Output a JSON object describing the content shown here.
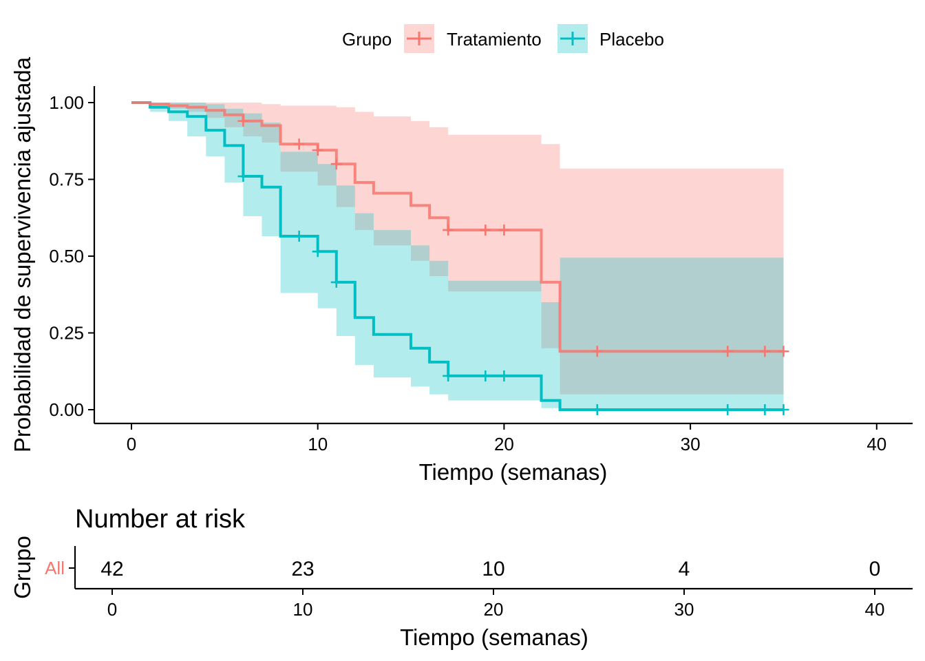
{
  "chart_data": [
    {
      "type": "line",
      "subtype": "kaplan-meier",
      "xlabel": "Tiempo (semanas)",
      "ylabel": "Probabilidad de supervivencia ajustada",
      "xlim": [
        0,
        40
      ],
      "ylim": [
        0,
        1
      ],
      "xticks": [
        0,
        10,
        20,
        30,
        40
      ],
      "yticks": [
        0,
        0.25,
        0.5,
        0.75,
        1
      ],
      "ytick_labels": [
        "0.00",
        "0.25",
        "0.50",
        "0.75",
        "1.00"
      ],
      "grid": false,
      "legend": {
        "title": "Grupo",
        "placement": "top"
      },
      "series": [
        {
          "name": "Tratamiento",
          "color": "#F8766D",
          "fill": "#F8766D",
          "steps": [
            [
              0,
              1.0
            ],
            [
              1,
              0.995
            ],
            [
              2,
              0.99
            ],
            [
              3,
              0.985
            ],
            [
              4,
              0.975
            ],
            [
              5,
              0.96
            ],
            [
              6,
              0.94
            ],
            [
              7,
              0.925
            ],
            [
              8,
              0.865
            ],
            [
              10,
              0.845
            ],
            [
              11,
              0.8
            ],
            [
              12,
              0.74
            ],
            [
              13,
              0.705
            ],
            [
              15,
              0.665
            ],
            [
              16,
              0.625
            ],
            [
              17,
              0.585
            ],
            [
              22,
              0.415
            ],
            [
              23,
              0.19
            ],
            [
              35,
              0.19
            ]
          ],
          "ci_lower": [
            [
              0,
              1.0
            ],
            [
              1,
              0.99
            ],
            [
              2,
              0.98
            ],
            [
              3,
              0.97
            ],
            [
              4,
              0.95
            ],
            [
              5,
              0.92
            ],
            [
              6,
              0.89
            ],
            [
              7,
              0.87
            ],
            [
              8,
              0.775
            ],
            [
              10,
              0.73
            ],
            [
              11,
              0.66
            ],
            [
              12,
              0.585
            ],
            [
              13,
              0.535
            ],
            [
              15,
              0.485
            ],
            [
              16,
              0.435
            ],
            [
              17,
              0.385
            ],
            [
              22,
              0.2
            ],
            [
              23,
              0.05
            ],
            [
              35,
              0.05
            ]
          ],
          "ci_upper": [
            [
              0,
              1.0
            ],
            [
              1,
              1.0
            ],
            [
              2,
              1.0
            ],
            [
              3,
              1.0
            ],
            [
              4,
              1.0
            ],
            [
              5,
              1.0
            ],
            [
              6,
              1.0
            ],
            [
              7,
              0.995
            ],
            [
              8,
              0.99
            ],
            [
              10,
              0.99
            ],
            [
              11,
              0.985
            ],
            [
              12,
              0.97
            ],
            [
              13,
              0.955
            ],
            [
              15,
              0.94
            ],
            [
              16,
              0.92
            ],
            [
              17,
              0.895
            ],
            [
              22,
              0.865
            ],
            [
              23,
              0.785
            ],
            [
              35,
              0.785
            ]
          ],
          "censors": [
            [
              6,
              0.94
            ],
            [
              9,
              0.865
            ],
            [
              10,
              0.845
            ],
            [
              11,
              0.8
            ],
            [
              17,
              0.585
            ],
            [
              19,
              0.585
            ],
            [
              20,
              0.585
            ],
            [
              25,
              0.19
            ],
            [
              32,
              0.19
            ],
            [
              34,
              0.19
            ],
            [
              35,
              0.19
            ]
          ]
        },
        {
          "name": "Placebo",
          "color": "#00BFC4",
          "fill": "#00BFC4",
          "steps": [
            [
              0,
              1.0
            ],
            [
              1,
              0.985
            ],
            [
              2,
              0.97
            ],
            [
              3,
              0.955
            ],
            [
              4,
              0.91
            ],
            [
              5,
              0.86
            ],
            [
              6,
              0.76
            ],
            [
              7,
              0.725
            ],
            [
              8,
              0.565
            ],
            [
              10,
              0.515
            ],
            [
              11,
              0.415
            ],
            [
              12,
              0.3
            ],
            [
              13,
              0.245
            ],
            [
              15,
              0.2
            ],
            [
              16,
              0.155
            ],
            [
              17,
              0.11
            ],
            [
              22,
              0.03
            ],
            [
              23,
              0.0
            ],
            [
              35,
              0.0
            ]
          ],
          "ci_lower": [
            [
              0,
              1.0
            ],
            [
              1,
              0.97
            ],
            [
              2,
              0.94
            ],
            [
              3,
              0.89
            ],
            [
              4,
              0.825
            ],
            [
              5,
              0.74
            ],
            [
              6,
              0.63
            ],
            [
              7,
              0.565
            ],
            [
              8,
              0.38
            ],
            [
              10,
              0.33
            ],
            [
              11,
              0.24
            ],
            [
              12,
              0.145
            ],
            [
              13,
              0.105
            ],
            [
              15,
              0.075
            ],
            [
              16,
              0.05
            ],
            [
              17,
              0.03
            ],
            [
              22,
              0.005
            ],
            [
              23,
              0.0
            ],
            [
              35,
              0.0
            ]
          ],
          "ci_upper": [
            [
              0,
              1.0
            ],
            [
              1,
              1.0
            ],
            [
              2,
              1.0
            ],
            [
              3,
              1.0
            ],
            [
              4,
              0.995
            ],
            [
              5,
              0.98
            ],
            [
              6,
              0.965
            ],
            [
              7,
              0.935
            ],
            [
              8,
              0.84
            ],
            [
              10,
              0.8
            ],
            [
              11,
              0.73
            ],
            [
              12,
              0.64
            ],
            [
              13,
              0.585
            ],
            [
              15,
              0.535
            ],
            [
              16,
              0.485
            ],
            [
              17,
              0.42
            ],
            [
              22,
              0.35
            ],
            [
              23,
              0.495
            ],
            [
              35,
              0.495
            ]
          ],
          "censors": [
            [
              6,
              0.76
            ],
            [
              9,
              0.565
            ],
            [
              10,
              0.515
            ],
            [
              11,
              0.415
            ],
            [
              17,
              0.11
            ],
            [
              19,
              0.11
            ],
            [
              20,
              0.11
            ],
            [
              25,
              0.0
            ],
            [
              32,
              0.0
            ],
            [
              34,
              0.0
            ],
            [
              35,
              0.0
            ]
          ]
        }
      ]
    },
    {
      "type": "table",
      "title": "Number at risk",
      "ylabel": "Grupo",
      "xlabel": "Tiempo (semanas)",
      "xlim": [
        0,
        40
      ],
      "xticks": [
        0,
        10,
        20,
        30,
        40
      ],
      "row_label": "All",
      "row_label_color": "#F8766D",
      "times": [
        0,
        10,
        20,
        30,
        40
      ],
      "values": [
        42,
        23,
        10,
        4,
        0
      ]
    }
  ]
}
